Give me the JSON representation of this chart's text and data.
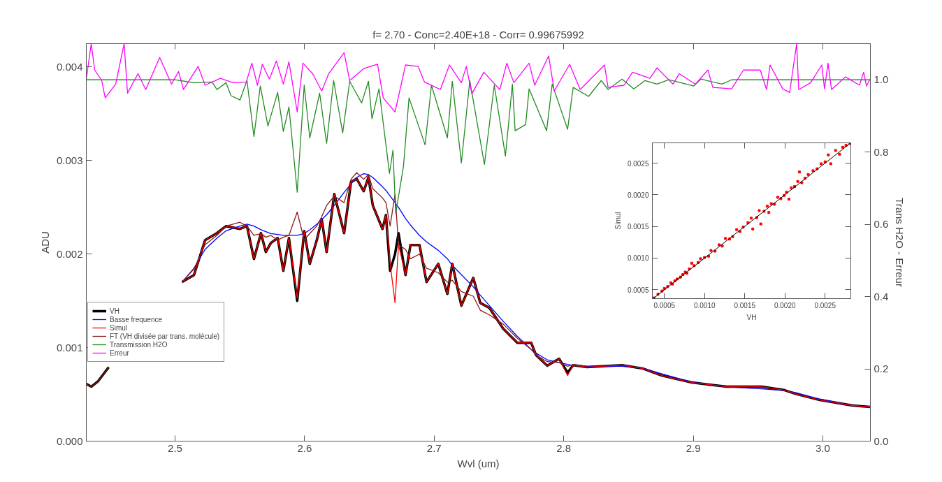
{
  "chart_data": [
    {
      "type": "line",
      "title": "f= 2.70 - Conc=2.40E+18 - Corr= 0.99675992",
      "xlabel": "Wvl (um)",
      "ylabel": "ADU",
      "y2label": "Trans H2O - Erreur",
      "legend": "left",
      "xlim": [
        2.4315,
        3.0367
      ],
      "xticks": [
        2.5,
        2.6,
        2.7,
        2.8,
        2.9,
        {
          "value": 3.0,
          "label": "3.0"
        }
      ],
      "ylim": [
        0,
        0.00425
      ],
      "yticks": [
        {
          "value": 0,
          "label": "0.000"
        },
        0.001,
        0.002,
        0.003,
        0.004
      ],
      "y2lim": [
        0,
        1.1
      ],
      "y2ticks": [
        {
          "value": 0,
          "label": "0.0"
        },
        0.2,
        0.4,
        0.6,
        0.8,
        {
          "value": 1,
          "label": "1.0"
        }
      ],
      "x": [
        2.4315,
        2.4353,
        2.4407,
        2.4488,
        2.473,
        2.5054,
        2.5146,
        2.5232,
        2.5323,
        2.5394,
        2.5501,
        2.5555,
        2.5609,
        2.5663,
        2.5701,
        2.5739,
        2.5792,
        2.5836,
        2.5879,
        2.5943,
        2.5997,
        2.604,
        2.6094,
        2.6132,
        2.617,
        2.6229,
        2.6305,
        2.6358,
        2.6402,
        2.6456,
        2.6493,
        2.6526,
        2.6601,
        2.6628,
        2.666,
        2.6698,
        2.6725,
        2.6779,
        2.6817,
        2.6887,
        2.6941,
        2.7032,
        2.7102,
        2.714,
        2.721,
        2.7302,
        2.7356,
        2.7426,
        2.7534,
        2.7642,
        2.7749,
        2.7787,
        2.7873,
        2.7965,
        2.803,
        2.8073,
        2.8181,
        2.845,
        2.8612,
        2.8757,
        2.8989,
        2.9259,
        2.9528,
        2.9706,
        2.9787,
        2.9976,
        3.0229,
        3.0364
      ],
      "series": [
        {
          "name": "VH",
          "color": "#000000",
          "values": [
            0.000612,
            0.000582,
            0.000642,
            0.000791,
            null,
            0.001701,
            0.001776,
            0.002149,
            0.002224,
            0.002299,
            0.002269,
            0.002299,
            0.001948,
            0.002224,
            0.002022,
            0.002119,
            0.002172,
            0.001821,
            0.002172,
            0.0015,
            0.002246,
            0.001896,
            0.002149,
            0.002373,
            0.002022,
            0.002642,
            0.002224,
            0.002769,
            0.002806,
            0.002672,
            0.002821,
            0.002522,
            0.002269,
            0.002418,
            0.001821,
            0.002,
            0.002224,
            0.001776,
            0.002097,
            0.002097,
            0.001701,
            0.001896,
            0.001575,
            0.001896,
            0.001448,
            0.001746,
            0.001478,
            0.001425,
            0.001201,
            0.001052,
            0.001052,
            0.000918,
            0.000806,
            0.000881,
            0.000731,
            0.000813,
            0.000791,
            0.000813,
            0.000776,
            0.000701,
            0.000627,
            0.000582,
            0.000582,
            0.000545,
            0.000507,
            0.00044,
            0.000381,
            0.000366
          ]
        },
        {
          "name": "Basse frequence",
          "color": "#0000ff",
          "values": [
            null,
            null,
            null,
            null,
            null,
            0.0017,
            0.00185,
            0.00205,
            0.00217,
            0.00225,
            0.0023,
            0.00232,
            0.0023,
            0.00226,
            0.00224,
            0.00222,
            0.00221,
            0.0022,
            0.0022,
            0.0022,
            0.00222,
            0.00226,
            0.00232,
            0.00237,
            0.00242,
            0.00252,
            0.00266,
            0.00275,
            0.00282,
            0.00286,
            0.00285,
            0.00282,
            0.00272,
            0.00268,
            0.00262,
            0.00255,
            0.0025,
            0.00238,
            0.00231,
            0.0022,
            0.00213,
            0.00204,
            0.00195,
            0.00188,
            0.00178,
            0.00165,
            0.00156,
            0.00145,
            0.00128,
            0.00112,
            0.00098,
            0.00094,
            0.00087,
            0.00084,
            0.00082,
            0.00081,
            0.0008,
            0.0008,
            0.00078,
            0.00072,
            0.00063,
            0.00058,
            0.00056,
            0.00054,
            0.00052,
            0.00045,
            0.00038,
            0.00037
          ]
        },
        {
          "name": "Simul",
          "color": "#ff0000",
          "values": [
            null,
            null,
            null,
            null,
            null,
            0.001701,
            0.001776,
            0.002149,
            0.002224,
            0.002299,
            0.002269,
            0.002299,
            0.001948,
            0.002224,
            0.002022,
            0.002119,
            0.002172,
            0.001821,
            0.002172,
            0.00153,
            0.002246,
            0.001896,
            0.002149,
            0.002373,
            0.002022,
            0.002642,
            0.002224,
            0.002769,
            0.002806,
            0.002672,
            0.002821,
            0.002522,
            0.002269,
            0.002418,
            0.0019,
            0.00148,
            0.0021,
            0.001776,
            0.002097,
            0.002097,
            0.001701,
            0.001896,
            0.001575,
            0.001896,
            0.001448,
            0.001746,
            0.001478,
            0.001425,
            0.001201,
            0.001052,
            0.001052,
            0.000918,
            0.000806,
            0.000881,
            0.0007,
            0.000813,
            0.000791,
            0.000813,
            0.000776,
            0.000701,
            0.000627,
            0.000582,
            0.000582,
            0.000545,
            0.000507,
            0.00044,
            0.000381,
            0.000366
          ]
        },
        {
          "name": "FT (VH divisée par trans. molécule)",
          "color": "#8b1a1a",
          "values": [
            0.00061,
            0.00058,
            0.00064,
            0.00079,
            null,
            0.0017,
            0.00184,
            0.0021,
            0.0022,
            0.0023,
            0.00234,
            0.0023,
            0.0022,
            0.00222,
            0.00218,
            0.0022,
            0.00215,
            0.00218,
            0.0022,
            0.00245,
            0.00215,
            0.00222,
            0.0023,
            0.0024,
            0.00252,
            0.00262,
            0.00255,
            0.0028,
            0.00287,
            0.0028,
            0.00285,
            0.0027,
            0.0026,
            0.00255,
            0.0023,
            0.00264,
            0.0021,
            0.00205,
            0.00195,
            0.002,
            0.00185,
            0.0018,
            0.0017,
            0.00172,
            0.0016,
            0.00155,
            0.0014,
            0.00135,
            0.00125,
            0.0011,
            0.00098,
            0.00092,
            0.00085,
            0.00084,
            0.0008,
            0.00082,
            0.0008,
            null,
            null,
            null,
            null,
            null,
            null,
            null,
            null,
            null,
            null,
            null
          ]
        },
        {
          "name": "Transmission H2O",
          "color": "#228b22",
          "axis": "y2",
          "x": [
            2.4315,
            2.5,
            2.5146,
            2.5286,
            2.5323,
            2.5394,
            2.5432,
            2.5501,
            2.5555,
            2.5609,
            2.5658,
            2.5717,
            2.5792,
            2.5836,
            2.5879,
            2.5943,
            2.5997,
            2.604,
            2.6116,
            2.617,
            2.6224,
            2.6294,
            2.6348,
            2.644,
            2.6493,
            2.652,
            2.6574,
            2.6601,
            2.6655,
            2.6682,
            2.6703,
            2.6763,
            2.6806,
            2.693,
            2.6979,
            2.7102,
            2.714,
            2.721,
            2.7275,
            2.7388,
            2.7464,
            2.755,
            2.7604,
            2.7625,
            2.7706,
            2.7733,
            2.7868,
            2.7911,
            2.803,
            2.8073,
            2.8192,
            2.829,
            2.8342,
            2.845,
            2.8541,
            2.8628,
            2.872,
            2.8811,
            2.9005,
            2.9059,
            2.9221,
            2.9296,
            3.0364
          ],
          "values": [
            1.0,
            1.0,
            0.992,
            0.994,
            0.973,
            0.992,
            0.956,
            0.944,
            0.998,
            0.843,
            0.983,
            0.872,
            0.965,
            0.857,
            0.925,
            0.689,
            0.985,
            0.839,
            0.963,
            0.824,
            0.998,
            0.853,
            0.996,
            0.936,
            0.996,
            0.892,
            0.975,
            0.897,
            0.741,
            0.805,
            0.63,
            0.76,
            0.95,
            0.82,
            0.985,
            0.839,
            0.996,
            0.77,
            0.998,
            0.766,
            0.985,
            0.789,
            0.988,
            0.859,
            0.876,
            0.975,
            0.859,
            0.988,
            0.863,
            0.979,
            0.954,
            0.998,
            0.973,
            1.002,
            0.975,
            0.998,
            0.988,
            1.0,
            0.983,
            1.002,
            0.988,
            1.0,
            1.0
          ]
        },
        {
          "name": "Erreur",
          "color": "#ff00ff",
          "axis": "y2",
          "x": [
            2.4315,
            2.4353,
            2.438,
            2.4434,
            2.4461,
            2.4542,
            2.4607,
            2.4633,
            2.4714,
            2.4774,
            2.4881,
            2.4973,
            2.5027,
            2.5065,
            2.5178,
            2.5232,
            2.535,
            2.5447,
            2.555,
            2.5593,
            2.5636,
            2.5674,
            2.5728,
            2.5782,
            2.5836,
            2.5879,
            2.5943,
            2.5987,
            2.6062,
            2.6132,
            2.6186,
            2.6305,
            2.6348,
            2.6456,
            2.6563,
            2.6607,
            2.6698,
            2.6779,
            2.6876,
            2.6925,
            2.7048,
            2.7118,
            2.721,
            2.7248,
            2.7291,
            2.7383,
            2.7507,
            2.7561,
            2.7615,
            2.7733,
            2.7776,
            2.7884,
            2.7927,
            2.8046,
            2.8127,
            2.8207,
            2.8315,
            2.8342,
            2.8466,
            2.8531,
            2.8666,
            2.872,
            2.8844,
            2.8892,
            2.9016,
            2.9113,
            2.9151,
            2.9296,
            2.9388,
            2.9517,
            2.9566,
            2.9593,
            2.969,
            2.9744,
            2.9798,
            2.9814,
            2.9906,
            2.9992,
            3.0013,
            3.004,
            3.0067,
            3.0175,
            3.0283,
            3.0315,
            3.0337,
            3.0364
          ],
          "values": [
            1.002,
            1.1,
            1.027,
            0.998,
            0.95,
            0.988,
            1.1,
            0.963,
            1.017,
            0.973,
            1.062,
            0.988,
            1.023,
            0.973,
            1.037,
            0.985,
            1.004,
            0.992,
            0.994,
            1.046,
            0.985,
            1.043,
            1.002,
            1.052,
            0.988,
            1.05,
            0.911,
            1.046,
            1.017,
            0.969,
            1.017,
            1.075,
            0.998,
            1.031,
            1.043,
            0.95,
            0.911,
            1.041,
            1.037,
            0.994,
            0.973,
            1.041,
            0.992,
            1.037,
            0.961,
            1.021,
            0.973,
            1.046,
            0.992,
            1.046,
            0.985,
            1.066,
            0.969,
            1.043,
            0.973,
            1.002,
            1.041,
            0.979,
            0.985,
            1.021,
            1.004,
            1.033,
            0.988,
            1.017,
            0.988,
            1.027,
            0.979,
            0.975,
            1.027,
            1.027,
            0.973,
            1.041,
            0.975,
            0.965,
            1.1,
            0.973,
            0.992,
            1.041,
            0.975,
            1.046,
            0.973,
            1.008,
            0.985,
            1.021,
            0.983,
            1.002
          ]
        }
      ]
    },
    {
      "type": "scatter",
      "xlabel": "VH",
      "ylabel": "Simul",
      "xlim": [
        0.00035,
        0.00282
      ],
      "xticks": [
        0.0005,
        {
          "value": 0.001,
          "label": "0.0010"
        },
        0.0015,
        {
          "value": 0.002,
          "label": "0.0020"
        },
        0.0025
      ],
      "ylim": [
        0.00036,
        0.00282
      ],
      "yticks": [
        0.0005,
        {
          "value": 0.001,
          "label": "0.0010"
        },
        0.0015,
        {
          "value": 0.002,
          "label": "0.0020"
        },
        0.0025
      ],
      "series": [
        {
          "color": "#ff0000",
          "marker": "square",
          "x": [
            0.00037,
            0.00042,
            0.00047,
            0.0005,
            0.00054,
            0.00058,
            0.0006,
            0.00063,
            0.00066,
            0.0007,
            0.00073,
            0.00076,
            0.00078,
            0.00081,
            0.00084,
            0.00087,
            0.00092,
            0.00095,
            0.001,
            0.00105,
            0.00108,
            0.00113,
            0.00118,
            0.00122,
            0.00126,
            0.00131,
            0.00135,
            0.0014,
            0.00144,
            0.00148,
            0.00154,
            0.00158,
            0.0016,
            0.00165,
            0.00168,
            0.0017,
            0.00174,
            0.00178,
            0.0018,
            0.00183,
            0.00187,
            0.00191,
            0.00195,
            0.00199,
            0.00202,
            0.00205,
            0.00208,
            0.00212,
            0.00216,
            0.00218,
            0.00221,
            0.00225,
            0.00229,
            0.00235,
            0.0024,
            0.00245,
            0.0025,
            0.00254,
            0.00257,
            0.00263,
            0.00268,
            0.00272,
            0.00276,
            0.00281
          ],
          "values": [
            0.00037,
            0.00043,
            0.00048,
            0.00052,
            0.00055,
            0.00061,
            0.00059,
            0.00064,
            0.00067,
            0.0007,
            0.00074,
            0.00078,
            0.00076,
            0.00083,
            0.00092,
            0.00088,
            0.00093,
            0.00099,
            0.00101,
            0.00103,
            0.00112,
            0.00111,
            0.00121,
            0.00119,
            0.00131,
            0.0013,
            0.00134,
            0.00145,
            0.00142,
            0.00149,
            0.00156,
            0.00163,
            0.00146,
            0.00164,
            0.00175,
            0.00154,
            0.00174,
            0.00182,
            0.00172,
            0.00186,
            0.00185,
            0.00196,
            0.00194,
            0.00199,
            0.00204,
            0.00193,
            0.00211,
            0.00213,
            0.00221,
            0.00236,
            0.00219,
            0.00226,
            0.00232,
            0.00238,
            0.00241,
            0.00249,
            0.00252,
            0.00263,
            0.00249,
            0.0027,
            0.00264,
            0.00275,
            0.00278,
            0.00281
          ]
        },
        {
          "type": "line",
          "color": "#000000",
          "x": [
            0.00036,
            0.00282
          ],
          "values": [
            0.00036,
            0.00282
          ]
        }
      ]
    }
  ]
}
